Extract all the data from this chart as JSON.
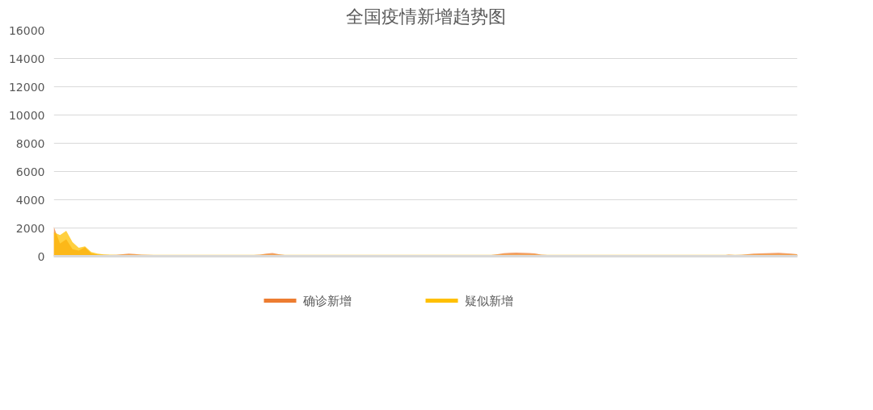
{
  "chart_data": {
    "type": "area",
    "title": "全国疫情新增趋势图",
    "categories": [
      null,
      null,
      null,
      null,
      null,
      null,
      null,
      null,
      null,
      null,
      null,
      null,
      null,
      null,
      null,
      null,
      null,
      null,
      null,
      null,
      null,
      null,
      null,
      null,
      null,
      null,
      null,
      null,
      null,
      null,
      null,
      null,
      null,
      null,
      null,
      null,
      null,
      null,
      null,
      null,
      null,
      null,
      null,
      null,
      null,
      null,
      null,
      null,
      null,
      null,
      null,
      null,
      null,
      null,
      null,
      null,
      null,
      null,
      null,
      null,
      null,
      null,
      null,
      null,
      null,
      null,
      null,
      null,
      null,
      null,
      null,
      null,
      null,
      null,
      null,
      null,
      null,
      null,
      null,
      null,
      null,
      null,
      null,
      null,
      null,
      null,
      null,
      null,
      null,
      null,
      null,
      null,
      null,
      null,
      null,
      null,
      null,
      null,
      null,
      null,
      null,
      null,
      null,
      null,
      null,
      null,
      null,
      null,
      null,
      null,
      null,
      null,
      null,
      null,
      null,
      null,
      null,
      null,
      null,
      null
    ],
    "series": [
      {
        "name": "确诊新增",
        "color": "#ed7d31",
        "values": [
          2100,
          900,
          1200,
          500,
          400,
          650,
          200,
          120,
          100,
          90,
          100,
          150,
          180,
          160,
          120,
          100,
          90,
          80,
          80,
          80,
          80,
          80,
          70,
          70,
          70,
          60,
          60,
          60,
          60,
          60,
          60,
          70,
          80,
          120,
          180,
          230,
          150,
          90,
          80,
          70,
          60,
          60,
          60,
          60,
          50,
          50,
          40,
          40,
          40,
          40,
          40,
          40,
          40,
          40,
          40,
          30,
          30,
          30,
          30,
          40,
          40,
          50,
          60,
          60,
          50,
          40,
          40,
          40,
          50,
          60,
          80,
          150,
          220,
          250,
          260,
          240,
          230,
          200,
          120,
          80,
          60,
          50,
          40,
          40,
          30,
          30,
          30,
          30,
          40,
          40,
          50,
          40,
          40,
          30,
          30,
          30,
          30,
          30,
          40,
          40,
          50,
          60,
          50,
          40,
          40,
          30,
          30,
          60,
          120,
          80,
          100,
          150,
          180,
          200,
          210,
          230,
          250,
          220,
          180,
          150
        ]
      },
      {
        "name": "疑似新增",
        "color": "#ffc000",
        "values": [
          1700,
          1500,
          1800,
          1000,
          600,
          700,
          300,
          180,
          130,
          110,
          100,
          100,
          100,
          100,
          100,
          100,
          100,
          100,
          100,
          100,
          100,
          100,
          100,
          100,
          100,
          100,
          100,
          100,
          100,
          100,
          100,
          100,
          100,
          100,
          100,
          100,
          100,
          100,
          100,
          100,
          100,
          100,
          100,
          100,
          100,
          100,
          100,
          100,
          100,
          100,
          100,
          100,
          100,
          100,
          100,
          100,
          100,
          100,
          100,
          100,
          100,
          100,
          100,
          100,
          100,
          100,
          100,
          100,
          100,
          100,
          100,
          100,
          100,
          100,
          100,
          100,
          100,
          100,
          100,
          100,
          100,
          100,
          100,
          100,
          100,
          100,
          100,
          100,
          100,
          100,
          100,
          100,
          100,
          100,
          100,
          100,
          100,
          100,
          100,
          100,
          100,
          100,
          100,
          100,
          100,
          100,
          100,
          100,
          100,
          100,
          100,
          100,
          100,
          100,
          100,
          100,
          100,
          100,
          100,
          100
        ]
      }
    ],
    "ylim": [
      0,
      16000
    ],
    "yticks": [
      0,
      2000,
      4000,
      6000,
      8000,
      10000,
      12000,
      14000,
      16000
    ],
    "grid": "y",
    "legend": "bottom"
  }
}
